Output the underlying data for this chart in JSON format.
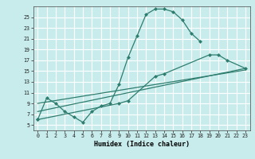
{
  "xlabel": "Humidex (Indice chaleur)",
  "bg_color": "#c8ecec",
  "grid_color": "#ffffff",
  "line_color": "#2e7d6e",
  "xlim": [
    -0.5,
    23.5
  ],
  "ylim": [
    4,
    27
  ],
  "yticks": [
    5,
    7,
    9,
    11,
    13,
    15,
    17,
    19,
    21,
    23,
    25
  ],
  "xticks": [
    0,
    1,
    2,
    3,
    4,
    5,
    6,
    7,
    8,
    9,
    10,
    11,
    12,
    13,
    14,
    15,
    16,
    17,
    18,
    19,
    20,
    21,
    22,
    23
  ],
  "line1_x": [
    0,
    1,
    2,
    3,
    4,
    5,
    6,
    7,
    8,
    9,
    10,
    11,
    12,
    13,
    14,
    15,
    16,
    17,
    18
  ],
  "line1_y": [
    6,
    10,
    9,
    7.5,
    6.5,
    5.5,
    7.5,
    8.5,
    9,
    12.5,
    17.5,
    21.5,
    25.5,
    26.5,
    26.5,
    26,
    24.5,
    22,
    20.5
  ],
  "line2_x": [
    0,
    9,
    10,
    13,
    14,
    19,
    20,
    21,
    23
  ],
  "line2_y": [
    6,
    9,
    9.5,
    14,
    14.5,
    18,
    18,
    17,
    15.5
  ],
  "line3_x": [
    0,
    23
  ],
  "line3_y": [
    7.5,
    15.5
  ],
  "line4_x": [
    0,
    23
  ],
  "line4_y": [
    9.0,
    15.2
  ],
  "marker_size": 2.5
}
